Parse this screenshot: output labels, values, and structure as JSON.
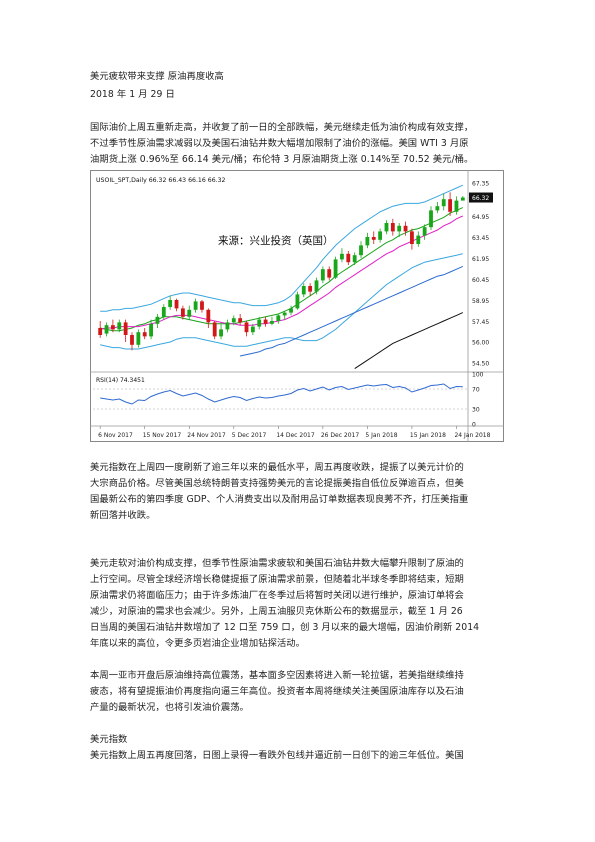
{
  "doc": {
    "title": "美元疲软带来支撑 原油再度收高",
    "date": "2018 年 1 月 29 日",
    "p1": [
      "国际油价上周五重新走高，并收复了前一日的全部跌幅，美元继续走低为油价构成有效支撑，",
      "不过季节性原油需求减弱以及美国石油钻井数大幅增加限制了油价的涨幅。美国 WTI 3 月原",
      "油期货上涨 0.96%至 66.14 美元/桶；布伦特 3 月原油期货上涨 0.14%至 70.52 美元/桶。"
    ],
    "p2": [
      "美元指数在上周四一度刷新了逾三年以来的最低水平，周五再度收跌，提振了以美元计价的",
      "大宗商品价格。尽管美国总统特朗普支持强势美元的言论提振美指自低位反弹逾百点，但美",
      "国最新公布的第四季度 GDP、个人消费支出以及耐用品订单数据表现良莠不齐，打压美指重",
      "新回落并收跌。"
    ],
    "p3": [
      "美元走软对油价构成支撑，但季节性原油需求疲软和美国石油钻井数大幅攀升限制了原油的",
      "上行空间。尽管全球经济增长稳健提振了原油需求前景，但随着北半球冬季即将结束，短期",
      "原油需求仍将面临压力；由于许多炼油厂在冬季过后将暂时关闭以进行维护，原油订单将会",
      "减少，对原油的需求也会减少。另外，上周五油服贝克休斯公布的数据显示，截至 1 月 26",
      "日当周的美国石油钻井数增加了 12 口至 759 口，创 3 月以来的最大增幅，因油价刷新 2014",
      "年底以来的高位，令更多页岩油企业增加钻探活动。"
    ],
    "p4": [
      "本周一亚市开盘后原油维持高位震荡，基本面多空因素将进入新一轮拉锯，若美指继续维持",
      "疲态，将有望提振油价再度指向逼三年高位。投资者本周将继续关注美国原油库存以及石油",
      "产量的最新状况，也将引发油价震荡。"
    ],
    "h2": "美元指数",
    "p5": [
      "美元指数上周五再度回落，日图上录得一看跌外包线并逼近前一日创下的逾三年低位。美国"
    ]
  },
  "chart_data": {
    "type": "candlestick",
    "header": "USOIL_SPT,Daily  66.32 66.43 66.16 66.32",
    "watermark": "来源：兴业投资（英国）",
    "price_labels": [
      "67.35",
      "66.32",
      "64.95",
      "63.45",
      "61.95",
      "60.45",
      "58.95",
      "57.45",
      "56.00",
      "54.50"
    ],
    "ylim": [
      54.0,
      68.0
    ],
    "last_price": "66.32",
    "x_labels": [
      "6 Nov 2017",
      "15 Nov 2017",
      "24 Nov 2017",
      "5 Dec 2017",
      "14 Dec 2017",
      "26 Dec 2017",
      "5 Jan 2018",
      "15 Jan 2018",
      "24 Jan 2018"
    ],
    "x_label_index": [
      0,
      7,
      14,
      21,
      28,
      35,
      42,
      49,
      56
    ],
    "candles": [
      [
        57.0,
        56.5,
        57.5,
        56.3
      ],
      [
        56.6,
        57.2,
        57.4,
        56.4
      ],
      [
        57.2,
        56.9,
        57.6,
        56.7
      ],
      [
        56.9,
        57.4,
        57.6,
        56.7
      ],
      [
        57.4,
        56.5,
        57.6,
        56.0
      ],
      [
        56.5,
        55.8,
        56.7,
        55.4
      ],
      [
        55.8,
        56.7,
        56.9,
        55.6
      ],
      [
        56.7,
        56.4,
        57.0,
        56.2
      ],
      [
        56.4,
        57.3,
        57.6,
        56.2
      ],
      [
        57.3,
        57.8,
        58.0,
        57.0
      ],
      [
        57.8,
        58.5,
        58.7,
        57.6
      ],
      [
        58.5,
        59.0,
        59.3,
        58.3
      ],
      [
        59.0,
        58.4,
        59.1,
        58.2
      ],
      [
        58.4,
        57.8,
        58.6,
        57.6
      ],
      [
        57.8,
        58.3,
        58.6,
        57.6
      ],
      [
        58.3,
        58.9,
        59.1,
        58.1
      ],
      [
        58.9,
        58.3,
        59.0,
        58.1
      ],
      [
        58.3,
        57.4,
        58.4,
        57.0
      ],
      [
        57.4,
        56.4,
        57.5,
        56.2
      ],
      [
        56.4,
        56.9,
        57.3,
        56.2
      ],
      [
        56.9,
        57.4,
        57.6,
        56.7
      ],
      [
        57.4,
        57.7,
        57.9,
        57.2
      ],
      [
        57.7,
        57.4,
        58.0,
        57.2
      ],
      [
        57.4,
        56.7,
        57.5,
        56.4
      ],
      [
        56.7,
        57.1,
        57.3,
        56.5
      ],
      [
        57.1,
        57.6,
        57.8,
        56.9
      ],
      [
        57.6,
        57.3,
        57.8,
        57.1
      ],
      [
        57.3,
        57.5,
        57.8,
        57.2
      ],
      [
        57.5,
        57.9,
        58.0,
        57.3
      ],
      [
        57.9,
        58.1,
        58.2,
        57.6
      ],
      [
        58.1,
        58.4,
        58.6,
        57.9
      ],
      [
        58.4,
        59.4,
        59.6,
        58.3
      ],
      [
        59.4,
        60.0,
        60.2,
        59.2
      ],
      [
        60.0,
        59.6,
        60.2,
        59.3
      ],
      [
        59.6,
        60.4,
        60.6,
        59.4
      ],
      [
        60.4,
        61.2,
        61.4,
        60.2
      ],
      [
        61.2,
        60.6,
        61.4,
        60.4
      ],
      [
        60.6,
        61.9,
        62.1,
        60.5
      ],
      [
        61.9,
        62.3,
        62.7,
        61.7
      ],
      [
        62.3,
        61.7,
        62.5,
        61.5
      ],
      [
        61.7,
        62.2,
        62.4,
        61.5
      ],
      [
        62.2,
        62.9,
        63.2,
        62.0
      ],
      [
        62.9,
        63.5,
        63.8,
        62.7
      ],
      [
        63.5,
        63.3,
        63.9,
        63.0
      ],
      [
        63.3,
        63.9,
        64.1,
        63.1
      ],
      [
        63.9,
        64.5,
        64.7,
        63.7
      ],
      [
        64.5,
        63.9,
        64.8,
        63.6
      ],
      [
        63.9,
        64.3,
        64.5,
        63.5
      ],
      [
        64.3,
        63.9,
        64.6,
        63.6
      ],
      [
        63.9,
        63.0,
        64.1,
        62.6
      ],
      [
        63.0,
        63.6,
        63.9,
        62.8
      ],
      [
        63.6,
        64.2,
        64.4,
        63.3
      ],
      [
        64.2,
        65.4,
        65.7,
        64.0
      ],
      [
        65.4,
        65.7,
        66.0,
        65.2
      ],
      [
        65.7,
        66.2,
        66.6,
        65.4
      ],
      [
        66.2,
        65.3,
        66.7,
        65.0
      ],
      [
        65.3,
        66.1,
        66.4,
        65.1
      ],
      [
        66.1,
        66.32,
        66.43,
        66.16
      ]
    ],
    "ma_green": [
      57.0,
      56.9,
      56.8,
      56.8,
      56.9,
      57.0,
      57.2,
      57.3,
      57.5,
      57.6,
      57.8,
      57.8,
      57.8,
      57.7,
      57.6,
      57.5,
      57.4,
      57.3,
      57.3,
      57.3,
      57.3,
      57.3,
      57.4,
      57.5,
      57.6,
      57.7,
      57.8,
      57.9,
      58.0,
      58.2,
      58.4,
      58.7,
      59.0,
      59.3,
      59.6,
      60.0,
      60.3,
      60.7,
      61.0,
      61.3,
      61.6,
      61.9,
      62.2,
      62.5,
      62.8,
      63.1,
      63.3,
      63.6,
      63.8,
      64.0,
      64.1,
      64.3,
      64.5,
      64.7,
      64.9,
      65.2,
      65.4,
      65.6
    ],
    "ma_magenta": [
      56.9,
      57.0,
      57.0,
      57.1,
      57.1,
      57.1,
      57.1,
      57.2,
      57.3,
      57.4,
      57.6,
      57.8,
      57.9,
      57.9,
      57.9,
      57.8,
      57.7,
      57.6,
      57.5,
      57.4,
      57.3,
      57.3,
      57.2,
      57.2,
      57.2,
      57.3,
      57.3,
      57.4,
      57.5,
      57.6,
      57.8,
      58.0,
      58.3,
      58.6,
      58.9,
      59.2,
      59.5,
      59.9,
      60.2,
      60.5,
      60.8,
      61.1,
      61.4,
      61.7,
      62.0,
      62.3,
      62.5,
      62.8,
      63.0,
      63.2,
      63.4,
      63.6,
      63.8,
      64.0,
      64.3,
      64.5,
      64.8,
      65.0
    ],
    "bb_upper": [
      58.2,
      58.2,
      58.3,
      58.3,
      58.4,
      58.4,
      58.5,
      58.6,
      58.7,
      58.9,
      59.1,
      59.3,
      59.4,
      59.5,
      59.5,
      59.4,
      59.3,
      59.2,
      59.1,
      59.0,
      58.9,
      58.8,
      58.8,
      58.7,
      58.6,
      58.6,
      58.6,
      58.7,
      58.8,
      59.0,
      59.3,
      59.8,
      60.3,
      60.8,
      61.3,
      61.9,
      62.4,
      62.9,
      63.3,
      63.7,
      64.1,
      64.4,
      64.7,
      65.0,
      65.3,
      65.5,
      65.7,
      65.8,
      65.9,
      65.9,
      65.9,
      66.0,
      66.2,
      66.4,
      66.6,
      66.8,
      67.0,
      67.2
    ],
    "bb_lower": [
      55.8,
      55.7,
      55.6,
      55.6,
      55.5,
      55.5,
      55.5,
      55.6,
      55.7,
      55.8,
      55.9,
      56.0,
      56.2,
      56.3,
      56.3,
      56.3,
      56.2,
      56.1,
      56.0,
      55.9,
      55.8,
      55.7,
      55.7,
      55.7,
      55.8,
      55.9,
      56.0,
      56.1,
      56.2,
      56.3,
      56.3,
      56.2,
      56.1,
      56.1,
      56.1,
      56.3,
      56.6,
      56.9,
      57.3,
      57.7,
      58.1,
      58.5,
      58.9,
      59.3,
      59.7,
      60.1,
      60.4,
      60.7,
      61.0,
      61.3,
      61.5,
      61.7,
      61.8,
      61.9,
      62.0,
      62.1,
      62.2,
      62.3
    ],
    "ma_blue": [
      null,
      null,
      null,
      null,
      null,
      null,
      null,
      null,
      null,
      null,
      null,
      null,
      null,
      null,
      null,
      null,
      null,
      null,
      null,
      null,
      null,
      null,
      55.0,
      55.1,
      55.2,
      55.3,
      55.5,
      55.6,
      55.8,
      55.9,
      56.1,
      56.3,
      56.5,
      56.7,
      56.9,
      57.1,
      57.3,
      57.5,
      57.7,
      57.9,
      58.1,
      58.3,
      58.5,
      58.7,
      58.9,
      59.1,
      59.3,
      59.5,
      59.7,
      59.9,
      60.1,
      60.3,
      60.5,
      60.7,
      60.8,
      61.0,
      61.2,
      61.4
    ],
    "ma_black": [
      null,
      null,
      null,
      null,
      null,
      null,
      null,
      null,
      null,
      null,
      null,
      null,
      null,
      null,
      null,
      null,
      null,
      null,
      null,
      null,
      null,
      null,
      null,
      null,
      null,
      null,
      null,
      null,
      null,
      null,
      null,
      null,
      null,
      null,
      null,
      null,
      null,
      null,
      null,
      null,
      54.1,
      54.4,
      54.7,
      55.0,
      55.3,
      55.6,
      55.9,
      56.1,
      56.3,
      56.5,
      56.7,
      56.9,
      57.1,
      57.3,
      57.5,
      57.7,
      57.9,
      58.1
    ],
    "rsi": {
      "label": "RSI(14) 74.3451",
      "levels": [
        "100",
        "70",
        "30",
        "0"
      ],
      "values": [
        52,
        50,
        48,
        50,
        44,
        40,
        48,
        47,
        55,
        60,
        64,
        67,
        61,
        56,
        59,
        62,
        57,
        50,
        44,
        48,
        52,
        55,
        53,
        47,
        51,
        54,
        52,
        53,
        56,
        58,
        61,
        68,
        71,
        66,
        70,
        74,
        68,
        73,
        75,
        69,
        72,
        75,
        78,
        76,
        78,
        79,
        73,
        75,
        72,
        64,
        68,
        72,
        77,
        78,
        80,
        71,
        75,
        74.3
      ]
    },
    "colors": {
      "up": "#1aa61a",
      "down": "#d01818",
      "bb": "#3aa7e0",
      "ma_green": "#1aa31a",
      "ma_magenta": "#e020c8",
      "ma_blue": "#2a6ad0",
      "ma_black": "#111111",
      "rsi": "#2f6ad0"
    }
  }
}
